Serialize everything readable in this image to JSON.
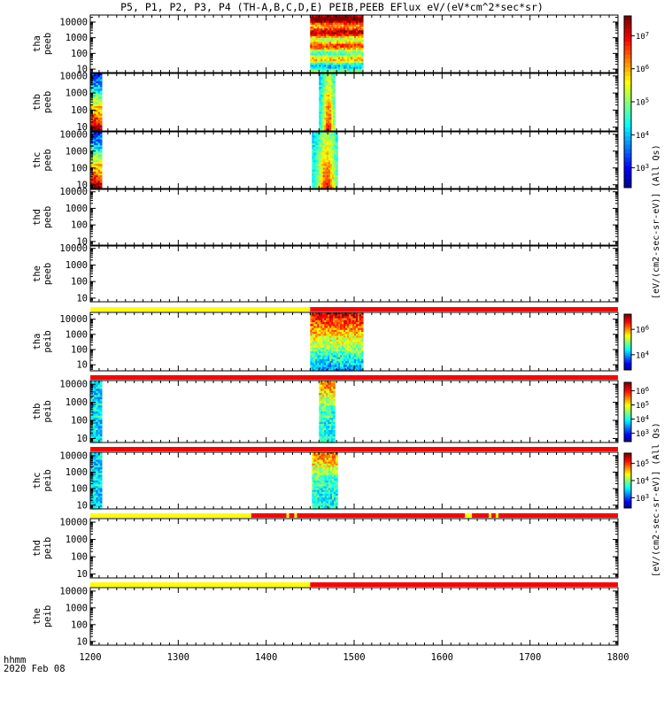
{
  "title": "P5, P1, P2, P3, P4 (TH-A,B,C,D,E) PEIB,PEEB EFlux eV/(eV*cm^2*sec*sr)",
  "footer": {
    "hhmm": "hhmm",
    "date": "2020 Feb 08"
  },
  "colorbar_units": {
    "peeb": "[eV/(cm2-sec-sr-eV)] (All Qs)",
    "peib": "[eV/(cm2-sec-sr-eV)] (All Qs)"
  },
  "chart_data": {
    "type": "heatmap",
    "title": "P5, P1, P2, P3, P4 (TH-A,B,C,D,E) PEIB,PEEB EFlux eV/(eV*cm^2*sec*sr)",
    "x": {
      "ticks": [
        1200,
        1300,
        1400,
        1500,
        1600,
        1700,
        1800
      ],
      "range": [
        1200,
        1800
      ],
      "label": "hhmm"
    },
    "y_scale": "log",
    "y_ticks": [
      10,
      100,
      1000,
      10000
    ],
    "panels": [
      {
        "label": [
          "tha",
          "peeb"
        ],
        "species": "electron",
        "data_intervals": [
          [
            1450,
            1510
          ]
        ],
        "colorbar": "peeb",
        "ylim": [
          6,
          28000
        ]
      },
      {
        "label": [
          "thb",
          "peeb"
        ],
        "species": "electron",
        "data_intervals": [
          [
            1200,
            1213
          ],
          [
            1460,
            1478
          ]
        ],
        "colorbar": "peeb",
        "ylim": [
          6,
          14000
        ]
      },
      {
        "label": [
          "thc",
          "peeb"
        ],
        "species": "electron",
        "data_intervals": [
          [
            1200,
            1213
          ],
          [
            1452,
            1481
          ]
        ],
        "colorbar": "peeb",
        "ylim": [
          6,
          14000
        ]
      },
      {
        "label": [
          "thd",
          "peeb"
        ],
        "species": "electron",
        "data_intervals": [],
        "ylim": [
          6,
          14000
        ]
      },
      {
        "label": [
          "the",
          "peeb"
        ],
        "species": "electron",
        "data_intervals": [],
        "ylim": [
          6,
          14000
        ]
      },
      {
        "label": [
          "tha",
          "peib"
        ],
        "species": "ion",
        "data_intervals": [
          [
            1450,
            1510
          ]
        ],
        "colorbar": "peib",
        "ylim": [
          4,
          28000
        ]
      },
      {
        "label": [
          "thb",
          "peib"
        ],
        "species": "ion",
        "data_intervals": [
          [
            1200,
            1213
          ],
          [
            1460,
            1478
          ]
        ],
        "colorbar": "peib",
        "ylim": [
          6,
          16000
        ]
      },
      {
        "label": [
          "thc",
          "peib"
        ],
        "species": "ion",
        "data_intervals": [
          [
            1200,
            1213
          ],
          [
            1452,
            1481
          ]
        ],
        "colorbar": "peib",
        "ylim": [
          6,
          16000
        ]
      },
      {
        "label": [
          "thd",
          "peib"
        ],
        "species": "ion",
        "data_intervals": [],
        "ylim": [
          6,
          16000
        ]
      },
      {
        "label": [
          "the",
          "peib"
        ],
        "species": "ion",
        "data_intervals": [],
        "ylim": [
          6,
          16000
        ]
      }
    ],
    "status_bars": [
      {
        "above_panel": 6,
        "segments": [
          [
            1200,
            1450,
            "yellow"
          ],
          [
            1450,
            1800,
            "red"
          ]
        ]
      },
      {
        "above_panel": 7,
        "segments": [
          [
            1200,
            1800,
            "red"
          ]
        ]
      },
      {
        "above_panel": 8,
        "segments": [
          [
            1200,
            1800,
            "red"
          ]
        ]
      },
      {
        "above_panel": 9,
        "segments": [
          [
            1200,
            1383,
            "yellow"
          ],
          [
            1383,
            1423,
            "red"
          ],
          [
            1423,
            1426,
            "yellow"
          ],
          [
            1426,
            1432,
            "red"
          ],
          [
            1432,
            1435,
            "yellow"
          ],
          [
            1435,
            1626,
            "red"
          ],
          [
            1626,
            1634,
            "yellow"
          ],
          [
            1634,
            1653,
            "red"
          ],
          [
            1653,
            1656,
            "yellow"
          ],
          [
            1656,
            1661,
            "red"
          ],
          [
            1661,
            1664,
            "yellow"
          ],
          [
            1664,
            1800,
            "red"
          ]
        ]
      },
      {
        "above_panel": 10,
        "segments": [
          [
            1200,
            1450,
            "yellow"
          ],
          [
            1450,
            1800,
            "red"
          ]
        ]
      }
    ],
    "colorbars": {
      "peeb": {
        "ticks": [
          "10^7",
          "10^6",
          "10^5",
          "10^4",
          "10^3"
        ]
      },
      "peib_a": {
        "ticks": [
          "10^6",
          "10^4"
        ]
      },
      "peib_b": {
        "ticks": [
          "10^6",
          "10^5",
          "10^4",
          "10^3"
        ]
      },
      "peib_c": {
        "ticks": [
          "10^5",
          "10^4",
          "10^3"
        ]
      }
    }
  },
  "colors": {
    "yellow": "#ffff00",
    "red": "#ff0000"
  }
}
